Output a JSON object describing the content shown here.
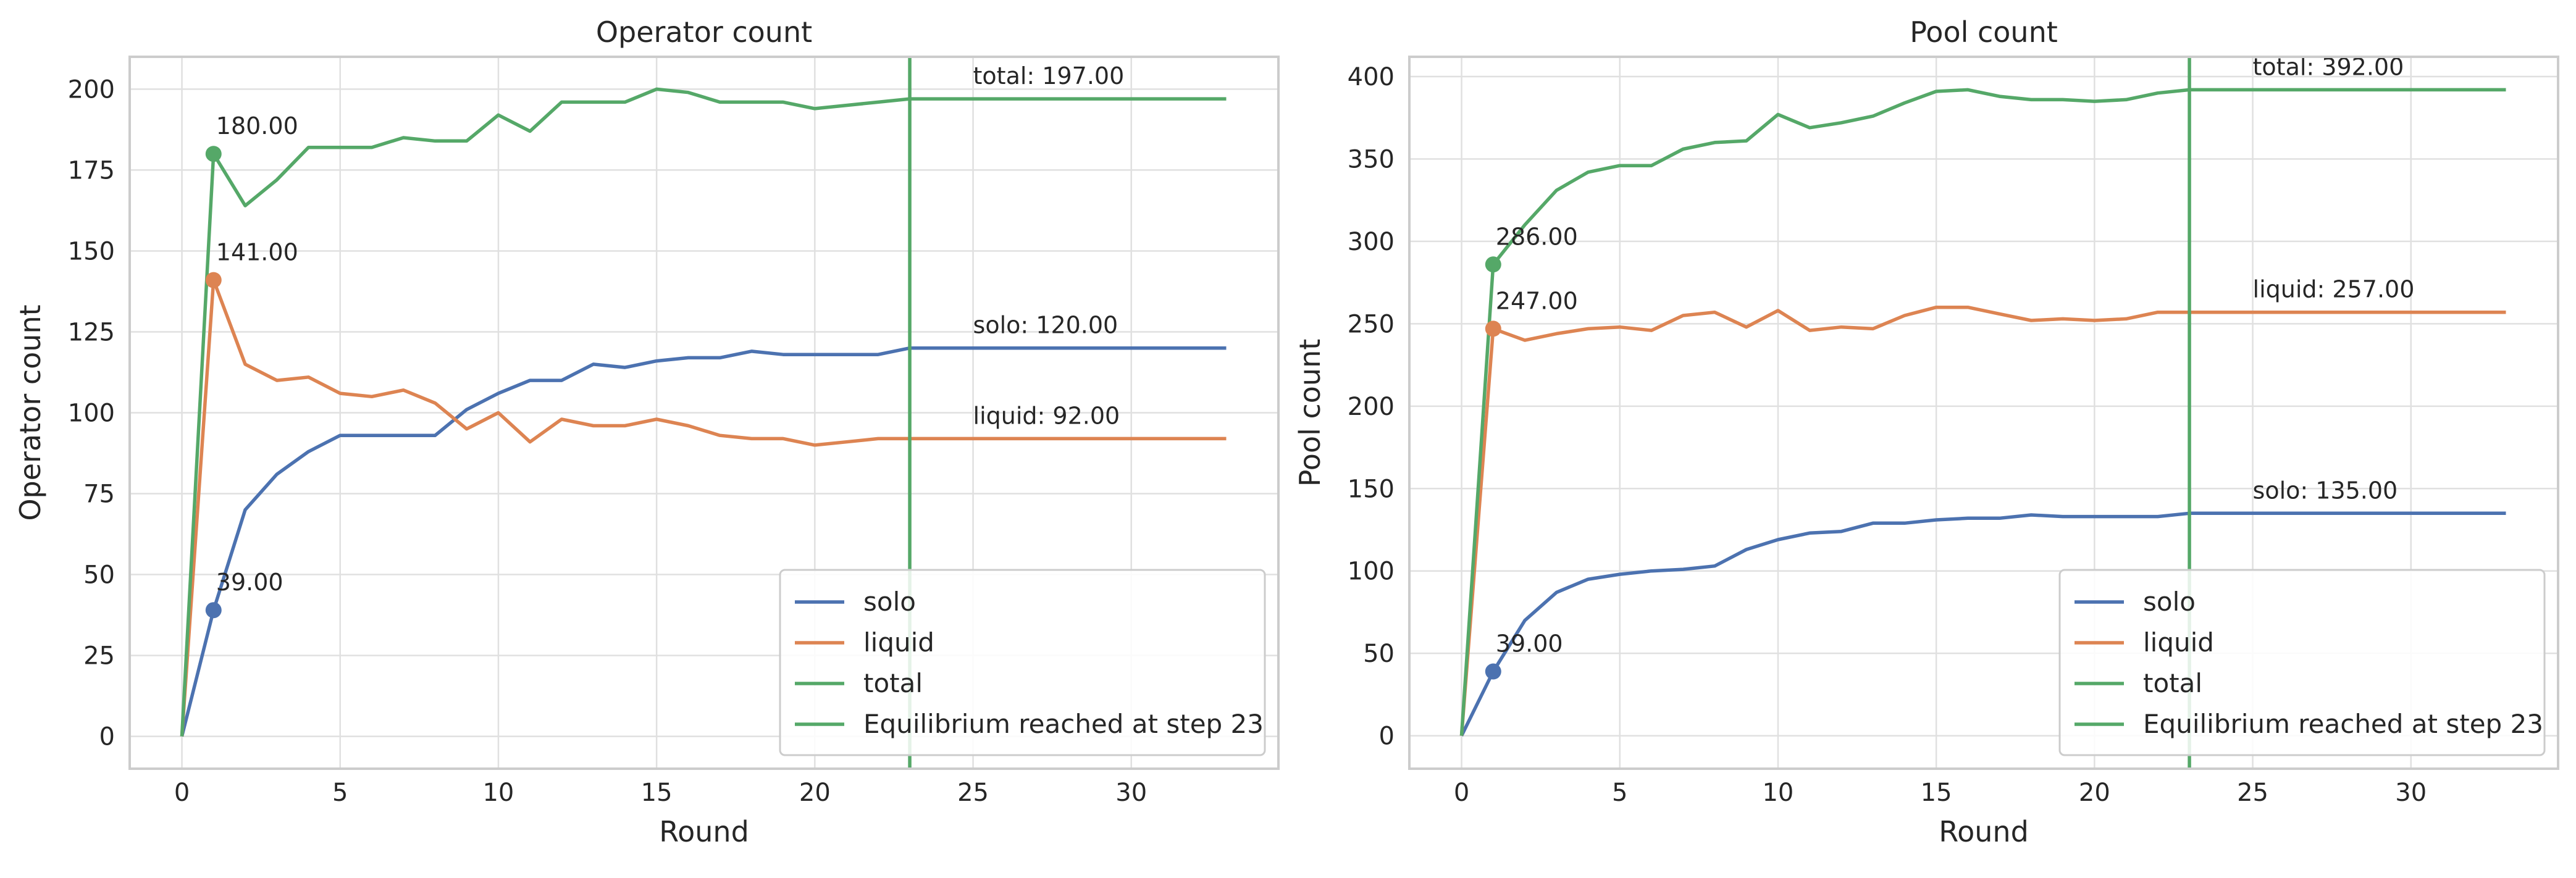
{
  "chart_data": [
    {
      "type": "line",
      "title": "Operator count",
      "xlabel": "Round",
      "ylabel": "Operator count",
      "xlim": [
        -1.65,
        34.65
      ],
      "ylim": [
        -10,
        210
      ],
      "xticks": [
        0,
        5,
        10,
        15,
        20,
        25,
        30
      ],
      "yticks": [
        0,
        25,
        50,
        75,
        100,
        125,
        150,
        175,
        200
      ],
      "grid": true,
      "legend_position": "lower-right",
      "x": [
        0,
        1,
        2,
        3,
        4,
        5,
        6,
        7,
        8,
        9,
        10,
        11,
        12,
        13,
        14,
        15,
        16,
        17,
        18,
        19,
        20,
        21,
        22,
        23,
        24,
        25,
        26,
        27,
        28,
        29,
        30,
        31,
        32,
        33
      ],
      "series": [
        {
          "name": "solo",
          "color": "#4c72b0",
          "values": [
            0,
            39,
            70,
            81,
            88,
            93,
            93,
            93,
            93,
            101,
            106,
            110,
            110,
            115,
            114,
            116,
            117,
            117,
            119,
            118,
            118,
            118,
            118,
            120,
            120,
            120,
            120,
            120,
            120,
            120,
            120,
            120,
            120,
            120
          ]
        },
        {
          "name": "liquid",
          "color": "#dd8452",
          "values": [
            0,
            141,
            115,
            110,
            111,
            106,
            105,
            107,
            103,
            95,
            100,
            91,
            98,
            96,
            96,
            98,
            96,
            93,
            92,
            92,
            90,
            91,
            92,
            92,
            92,
            92,
            92,
            92,
            92,
            92,
            92,
            92,
            92,
            92
          ]
        },
        {
          "name": "total",
          "color": "#55a868",
          "values": [
            0,
            180,
            164,
            172,
            182,
            182,
            182,
            185,
            184,
            184,
            192,
            187,
            196,
            196,
            196,
            200,
            199,
            196,
            196,
            196,
            194,
            195,
            196,
            197,
            197,
            197,
            197,
            197,
            197,
            197,
            197,
            197,
            197,
            197
          ]
        }
      ],
      "vline": {
        "x": 23,
        "label": "Equilibrium reached at step 23",
        "color": "#55a868"
      },
      "markers": [
        {
          "series": "solo",
          "x": 1,
          "y": 39,
          "label": "39.00"
        },
        {
          "series": "liquid",
          "x": 1,
          "y": 141,
          "label": "141.00"
        },
        {
          "series": "total",
          "x": 1,
          "y": 180,
          "label": "180.00"
        }
      ],
      "end_labels": [
        {
          "x": 25,
          "y": 120,
          "label": "solo: 120.00"
        },
        {
          "x": 25,
          "y": 92,
          "label": "liquid: 92.00"
        },
        {
          "x": 25,
          "y": 197,
          "label": "total: 197.00"
        }
      ]
    },
    {
      "type": "line",
      "title": "Pool count",
      "xlabel": "Round",
      "ylabel": "Pool count",
      "xlim": [
        -1.65,
        34.65
      ],
      "ylim": [
        -20,
        412
      ],
      "xticks": [
        0,
        5,
        10,
        15,
        20,
        25,
        30
      ],
      "yticks": [
        0,
        50,
        100,
        150,
        200,
        250,
        300,
        350,
        400
      ],
      "grid": true,
      "legend_position": "lower-right",
      "x": [
        0,
        1,
        2,
        3,
        4,
        5,
        6,
        7,
        8,
        9,
        10,
        11,
        12,
        13,
        14,
        15,
        16,
        17,
        18,
        19,
        20,
        21,
        22,
        23,
        24,
        25,
        26,
        27,
        28,
        29,
        30,
        31,
        32,
        33
      ],
      "series": [
        {
          "name": "solo",
          "color": "#4c72b0",
          "values": [
            0,
            39,
            70,
            87,
            95,
            98,
            100,
            101,
            103,
            113,
            119,
            123,
            124,
            129,
            129,
            131,
            132,
            132,
            134,
            133,
            133,
            133,
            133,
            135,
            135,
            135,
            135,
            135,
            135,
            135,
            135,
            135,
            135,
            135
          ]
        },
        {
          "name": "liquid",
          "color": "#dd8452",
          "values": [
            0,
            247,
            240,
            244,
            247,
            248,
            246,
            255,
            257,
            248,
            258,
            246,
            248,
            247,
            255,
            260,
            260,
            256,
            252,
            253,
            252,
            253,
            257,
            257,
            257,
            257,
            257,
            257,
            257,
            257,
            257,
            257,
            257,
            257
          ]
        },
        {
          "name": "total",
          "color": "#55a868",
          "values": [
            0,
            286,
            310,
            331,
            342,
            346,
            346,
            356,
            360,
            361,
            377,
            369,
            372,
            376,
            384,
            391,
            392,
            388,
            386,
            386,
            385,
            386,
            390,
            392,
            392,
            392,
            392,
            392,
            392,
            392,
            392,
            392,
            392,
            392
          ]
        }
      ],
      "vline": {
        "x": 23,
        "label": "Equilibrium reached at step 23",
        "color": "#55a868"
      },
      "markers": [
        {
          "series": "solo",
          "x": 1,
          "y": 39,
          "label": "39.00"
        },
        {
          "series": "liquid",
          "x": 1,
          "y": 247,
          "label": "247.00"
        },
        {
          "series": "total",
          "x": 1,
          "y": 286,
          "label": "286.00"
        }
      ],
      "end_labels": [
        {
          "x": 25,
          "y": 135,
          "label": "solo: 135.00"
        },
        {
          "x": 25,
          "y": 257,
          "label": "liquid: 257.00"
        },
        {
          "x": 25,
          "y": 392,
          "label": "total: 392.00"
        }
      ]
    }
  ]
}
